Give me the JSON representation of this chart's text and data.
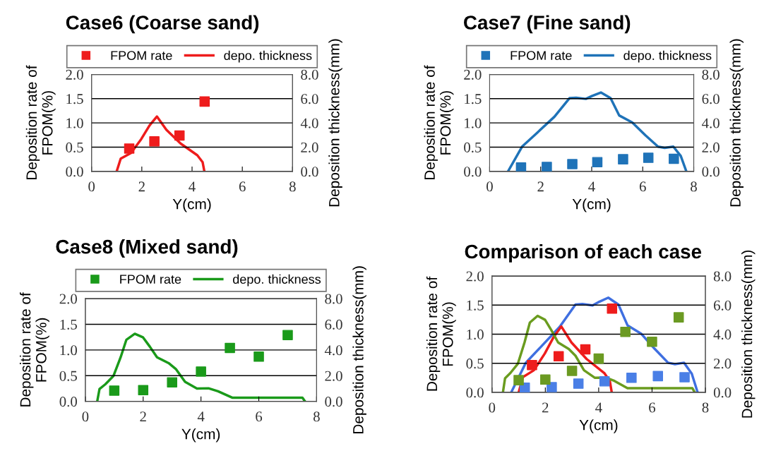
{
  "chart_data": [
    {
      "type": "scatter",
      "title": "Case6 (Coarse sand)",
      "xlabel": "Y(cm)",
      "ylabel": "Deposition rate of\nFPOM(%)",
      "y2label": "Deposition thickness(mm)",
      "legend": "top",
      "grid": "y",
      "xlim": [
        0,
        8
      ],
      "xticks": [
        0,
        2,
        4,
        6,
        8
      ],
      "ylim": [
        0,
        2
      ],
      "yticks": [
        {
          "value": 0,
          "label": "0.0"
        },
        {
          "value": 0.5,
          "label": "0.5"
        },
        {
          "value": 1,
          "label": "1.0"
        },
        {
          "value": 1.5,
          "label": "1.5"
        },
        {
          "value": 2,
          "label": "2.0"
        }
      ],
      "y2lim": [
        0,
        8
      ],
      "y2ticks": [
        {
          "value": 0,
          "label": "0.0"
        },
        {
          "value": 2,
          "label": "2.0"
        },
        {
          "value": 4,
          "label": "4.0"
        },
        {
          "value": 6,
          "label": "6.0"
        },
        {
          "value": 8,
          "label": "8.0"
        }
      ],
      "series": [
        {
          "name": "FPOM rate",
          "marker": "square",
          "color": "#ee1c1c",
          "x": [
            1.5,
            2.5,
            3.5,
            4.5
          ],
          "values": [
            0.47,
            0.62,
            0.74,
            1.44
          ]
        },
        {
          "name": "depo. thickness",
          "type": "line",
          "axis": "y2",
          "line_style": "solid",
          "color": "#ee1c1c",
          "x": [
            1.0,
            1.16,
            1.57,
            1.98,
            2.31,
            2.6,
            2.98,
            3.55,
            4.21,
            4.42,
            4.49
          ],
          "values": [
            0,
            1.05,
            1.52,
            2.67,
            3.8,
            4.53,
            3.43,
            2.29,
            1.33,
            0.76,
            0
          ]
        }
      ]
    },
    {
      "type": "scatter",
      "title": "Case7 (Fine sand)",
      "xlabel": "Y(cm)",
      "ylabel": "Deposition rate of\nFPOM(%)",
      "y2label": "Deposition thickness(mm)",
      "legend": "top",
      "grid": "y",
      "xlim": [
        0,
        8
      ],
      "xticks": [
        0,
        2,
        4,
        6,
        8
      ],
      "ylim": [
        0,
        2
      ],
      "yticks": [
        {
          "value": 0,
          "label": "0.0"
        },
        {
          "value": 0.5,
          "label": "0.5"
        },
        {
          "value": 1,
          "label": "1.0"
        },
        {
          "value": 1.5,
          "label": "1.5"
        },
        {
          "value": 2,
          "label": "2.0"
        }
      ],
      "y2lim": [
        0,
        8
      ],
      "y2ticks": [
        {
          "value": 0,
          "label": "0.0"
        },
        {
          "value": 2,
          "label": "2.0"
        },
        {
          "value": 4,
          "label": "4.0"
        },
        {
          "value": 6,
          "label": "6.0"
        },
        {
          "value": 8,
          "label": "8.0"
        }
      ],
      "series": [
        {
          "name": "FPOM rate",
          "marker": "square",
          "color": "#1f73b8",
          "x": [
            1.23,
            2.24,
            3.24,
            4.22,
            5.23,
            6.22,
            7.22
          ],
          "values": [
            0.08,
            0.09,
            0.15,
            0.19,
            0.25,
            0.28,
            0.26
          ]
        },
        {
          "name": "depo. thickness",
          "type": "line",
          "axis": "y2",
          "line_style": "solid",
          "color": "#1f73b8",
          "x": [
            0.72,
            1.27,
            1.86,
            2.54,
            3.13,
            3.39,
            3.77,
            4.02,
            4.36,
            4.74,
            5.08,
            5.59,
            6.1,
            6.6,
            6.86,
            7.2,
            7.49,
            7.71
          ],
          "values": [
            0,
            2.04,
            3.18,
            4.51,
            6.04,
            6.08,
            5.98,
            6.23,
            6.51,
            6.04,
            4.61,
            4.04,
            2.99,
            2.04,
            1.94,
            2.04,
            1.28,
            0
          ]
        }
      ]
    },
    {
      "type": "scatter",
      "title": "Case8 (Mixed sand)",
      "xlabel": "Y(cm)",
      "ylabel": "Deposition rate of\nFPOM(%)",
      "y2label": "Deposition thickness(mm)",
      "legend": "top",
      "grid": "y",
      "xlim": [
        0,
        8
      ],
      "xticks": [
        0,
        2,
        4,
        6,
        8
      ],
      "ylim": [
        0,
        2
      ],
      "yticks": [
        {
          "value": 0,
          "label": "0.0"
        },
        {
          "value": 0.5,
          "label": "0.5"
        },
        {
          "value": 1,
          "label": "1.0"
        },
        {
          "value": 1.5,
          "label": "1.5"
        },
        {
          "value": 2,
          "label": "2.0"
        }
      ],
      "y2lim": [
        0,
        8
      ],
      "y2ticks": [
        {
          "value": 0,
          "label": "0.0"
        },
        {
          "value": 2,
          "label": "2.0"
        },
        {
          "value": 4,
          "label": "4.0"
        },
        {
          "value": 6,
          "label": "6.0"
        },
        {
          "value": 8,
          "label": "8.0"
        }
      ],
      "series": [
        {
          "name": "FPOM rate",
          "marker": "square",
          "color": "#1a9a1a",
          "x": [
            1,
            2,
            3,
            4,
            5,
            6,
            7
          ],
          "values": [
            0.21,
            0.22,
            0.37,
            0.58,
            1.04,
            0.87,
            1.29
          ]
        },
        {
          "name": "depo. thickness",
          "type": "line",
          "axis": "y2",
          "line_style": "solid",
          "color": "#1a9a1a",
          "x": [
            0.41,
            0.49,
            0.69,
            0.97,
            1.22,
            1.42,
            1.71,
            1.99,
            2.23,
            2.48,
            2.88,
            3.13,
            3.45,
            3.86,
            4.26,
            4.59,
            5.08,
            7.51,
            7.6
          ],
          "values": [
            0,
            0.97,
            1.33,
            1.97,
            3.43,
            4.8,
            5.26,
            4.99,
            4.26,
            3.43,
            2.98,
            2.52,
            1.52,
            1.0,
            1.02,
            0.79,
            0.29,
            0.29,
            0
          ]
        }
      ]
    },
    {
      "type": "scatter",
      "title": "Comparison of each case",
      "xlabel": "Y(cm)",
      "ylabel": "Deposition rate of\nFPOM(%)",
      "y2label": "Deposition thickness(mm)",
      "grid": "y",
      "xlim": [
        0,
        8
      ],
      "xticks": [
        0,
        2,
        4,
        6,
        8
      ],
      "ylim": [
        0,
        2
      ],
      "yticks": [
        {
          "value": 0,
          "label": "0.0"
        },
        {
          "value": 0.5,
          "label": "0.5"
        },
        {
          "value": 1,
          "label": "1.0"
        },
        {
          "value": 1.5,
          "label": "1.5"
        },
        {
          "value": 2,
          "label": "2.0"
        }
      ],
      "y2lim": [
        0,
        8
      ],
      "y2ticks": [
        {
          "value": 0,
          "label": "0.0"
        },
        {
          "value": 2,
          "label": "2.0"
        },
        {
          "value": 4,
          "label": "4.0"
        },
        {
          "value": 6,
          "label": "6.0"
        },
        {
          "value": 8,
          "label": "8.0"
        }
      ],
      "series": [
        {
          "type": "line",
          "axis": "y2",
          "line_style": "solid",
          "color": "#3f6fe0",
          "x": [
            0.72,
            1.27,
            1.86,
            2.54,
            3.13,
            3.39,
            3.77,
            4.02,
            4.36,
            4.74,
            5.08,
            5.59,
            6.1,
            6.6,
            6.86,
            7.2,
            7.49,
            7.71
          ],
          "values": [
            0,
            2.04,
            3.18,
            4.51,
            6.04,
            6.08,
            5.98,
            6.23,
            6.51,
            6.04,
            4.61,
            4.04,
            2.99,
            2.04,
            1.94,
            2.04,
            1.28,
            0
          ]
        },
        {
          "type": "line",
          "axis": "y2",
          "line_style": "solid",
          "color": "#ee1c1c",
          "x": [
            1.0,
            1.16,
            1.57,
            1.98,
            2.31,
            2.6,
            2.98,
            3.55,
            4.21,
            4.42,
            4.49
          ],
          "values": [
            0,
            1.05,
            1.52,
            2.67,
            3.8,
            4.53,
            3.43,
            2.29,
            1.33,
            0.76,
            0
          ]
        },
        {
          "type": "line",
          "axis": "y2",
          "line_style": "solid",
          "color": "#6a9c1f",
          "x": [
            0.41,
            0.49,
            0.69,
            0.97,
            1.22,
            1.42,
            1.71,
            1.99,
            2.23,
            2.48,
            2.88,
            3.13,
            3.45,
            3.86,
            4.26,
            4.59,
            5.08,
            7.51,
            7.6
          ],
          "values": [
            0,
            0.97,
            1.33,
            1.97,
            3.43,
            4.8,
            5.26,
            4.99,
            4.26,
            3.43,
            2.98,
            2.52,
            1.52,
            1.0,
            1.02,
            0.79,
            0.29,
            0.29,
            0
          ]
        },
        {
          "marker": "square",
          "color": "#ee1c1c",
          "x": [
            1.5,
            2.5,
            3.5,
            4.5
          ],
          "values": [
            0.47,
            0.62,
            0.74,
            1.44
          ]
        },
        {
          "marker": "square",
          "color": "#4a7fe6",
          "x": [
            1.23,
            2.24,
            3.24,
            4.22,
            5.23,
            6.22,
            7.22
          ],
          "values": [
            0.08,
            0.09,
            0.15,
            0.19,
            0.25,
            0.28,
            0.26
          ]
        },
        {
          "marker": "square",
          "color": "#6b9a22",
          "x": [
            1,
            2,
            3,
            4,
            5,
            6,
            7
          ],
          "values": [
            0.21,
            0.22,
            0.37,
            0.58,
            1.04,
            0.87,
            1.29
          ]
        }
      ]
    }
  ]
}
